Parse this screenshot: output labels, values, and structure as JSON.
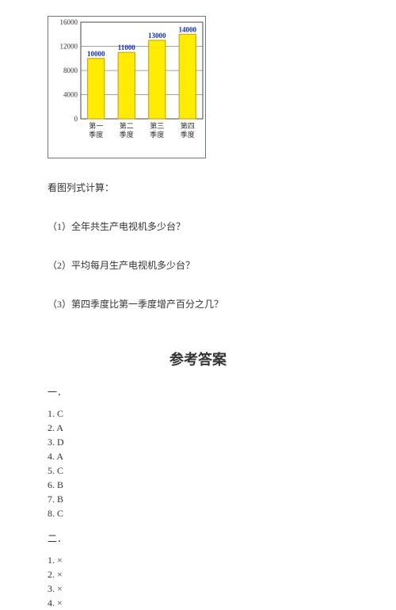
{
  "chart": {
    "type": "bar",
    "categories": [
      "第一\n季度",
      "第二\n季度",
      "第三\n季度",
      "第四\n季度"
    ],
    "values": [
      10000,
      11000,
      13000,
      14000
    ],
    "value_labels": [
      "10000",
      "11000",
      "13000",
      "14000"
    ],
    "ylim": [
      0,
      16000
    ],
    "ytick_step": 4000,
    "yticks": [
      0,
      4000,
      8000,
      12000,
      16000
    ],
    "bar_color": "#ffec00",
    "bar_border": "#cc9900",
    "axis_color": "#444444",
    "grid_color": "#444444",
    "value_label_color": "#1030cc",
    "plot_area_bg": "#ffffff",
    "outer_border_color": "#6a7590",
    "axis_label_color": "#333333",
    "bar_width": 0.55,
    "label_fontsize": 9,
    "value_fontsize": 9,
    "tick_fontsize": 9
  },
  "prompt": "看图列式计算：",
  "questions": {
    "q1": "（1）全年共生产电视机多少台？",
    "q2": "（2）平均每月生产电视机多少台？",
    "q3": "（3）第四季度比第一季度增产百分之几？"
  },
  "answers_title": "参考答案",
  "section1": {
    "label": "一．",
    "items": [
      "1. C",
      "2. A",
      "3. D",
      "4. A",
      "5. C",
      "6. B",
      "7. B",
      "8. C"
    ]
  },
  "section2": {
    "label": "二．",
    "items": [
      "1. ×",
      "2. ×",
      "3. ×",
      "4. ×"
    ]
  }
}
